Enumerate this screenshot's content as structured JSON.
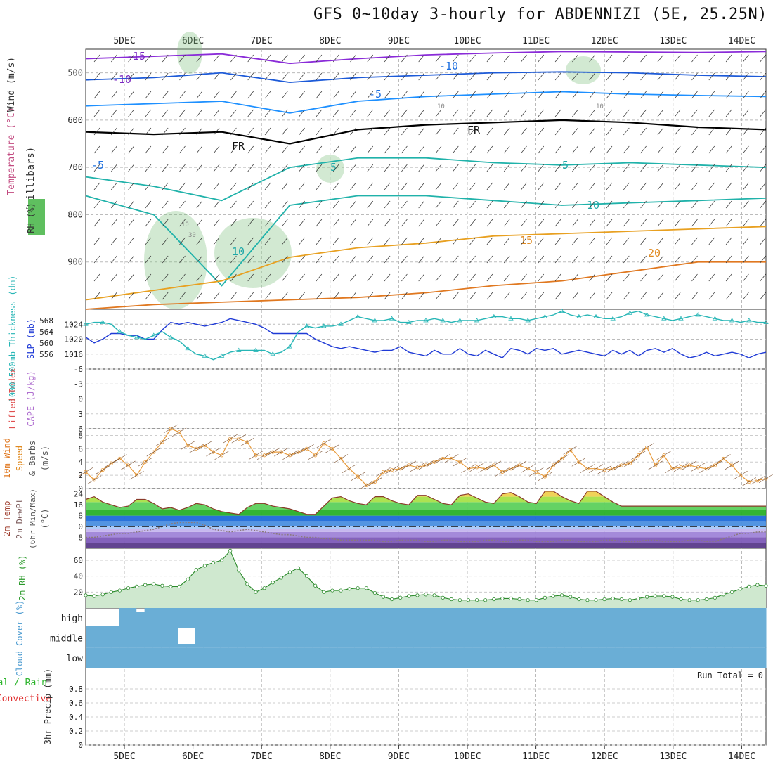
{
  "title": "GFS 0~10day 3-hourly for ABDENNIZI (5E, 25.25N)",
  "x_ticks": [
    "5DEC",
    "6DEC",
    "7DEC",
    "8DEC",
    "9DEC",
    "10DEC",
    "11DEC",
    "12DEC",
    "13DEC",
    "14DEC"
  ],
  "colors": {
    "temperature_contours": "#1c5ad8",
    "freezing_line": "#000000",
    "rh_shade": "#7fbf7f",
    "slp_line": "#1f3ad6",
    "thickness_line": "#27b6b6",
    "lifted_index_line": "#e05050",
    "wind_speed_line": "#e89a3a",
    "rh_line": "#2b8a2b",
    "cloud_fill": "#6aaed6",
    "precip_total": "#2db52d",
    "precip_convective": "#e03030"
  },
  "chart_data": [
    {
      "panel": "upper-air",
      "type": "line",
      "ylabel": "(millibars)",
      "ylabel_parts": [
        "Wind (m/s)",
        "Temperature (°C)",
        "RH (%)"
      ],
      "ylim": [
        1000,
        450
      ],
      "y_ticks": [
        500,
        600,
        700,
        800,
        900
      ],
      "contour_labels": [
        "-15",
        "-10",
        "-10",
        "-5",
        "-5",
        "FR",
        "FR",
        "5",
        "5",
        "10",
        "10",
        "15",
        "20"
      ],
      "rh_labels": [
        "10",
        "30",
        "10",
        "10"
      ],
      "series": [
        {
          "name": "-15",
          "y": [
            470,
            465,
            460,
            480,
            470,
            462,
            458,
            455,
            456,
            457,
            455
          ]
        },
        {
          "name": "-10",
          "y": [
            515,
            510,
            500,
            520,
            510,
            505,
            500,
            498,
            500,
            505,
            508
          ]
        },
        {
          "name": "-5",
          "y": [
            570,
            565,
            560,
            585,
            560,
            550,
            545,
            540,
            545,
            548,
            550
          ]
        },
        {
          "name": "FR",
          "y": [
            625,
            630,
            625,
            650,
            620,
            610,
            605,
            600,
            605,
            615,
            620
          ]
        },
        {
          "name": "5",
          "y": [
            720,
            740,
            770,
            700,
            680,
            680,
            690,
            695,
            690,
            695,
            700
          ]
        },
        {
          "name": "10",
          "y": [
            760,
            800,
            950,
            780,
            760,
            760,
            770,
            780,
            775,
            770,
            765
          ]
        },
        {
          "name": "15",
          "y": [
            980,
            960,
            940,
            890,
            870,
            860,
            845,
            840,
            835,
            830,
            825
          ]
        },
        {
          "name": "20",
          "y": [
            1000,
            990,
            985,
            980,
            975,
            965,
            950,
            940,
            920,
            900,
            900
          ]
        }
      ]
    },
    {
      "panel": "slp-thickness",
      "type": "line",
      "ylabel": "SLP (mb)",
      "ylabel2": "1000-500mb Thickness (dm)",
      "y_ticks_left": [
        "568",
        "564",
        "560",
        "556"
      ],
      "y_ticks_right": [
        "1024",
        "1020",
        "1016"
      ],
      "ylim": [
        1012,
        1028
      ],
      "series": [
        {
          "name": "SLP",
          "values": [
            1020.5,
            1019.0,
            1020.0,
            1021.5,
            1021.5,
            1021.0,
            1021.0,
            1020.0,
            1020.0,
            1022.5,
            1024.5,
            1024.0,
            1024.5,
            1024.0,
            1023.5,
            1024.0,
            1024.5,
            1025.5,
            1025.0,
            1024.5,
            1024.0,
            1023.0,
            1021.5,
            1021.5,
            1021.5,
            1021.5,
            1021.5,
            1020.0,
            1019.0,
            1018.0,
            1017.5,
            1018.0,
            1017.5,
            1017.0,
            1016.5,
            1017.0,
            1017.0,
            1018.0,
            1016.5,
            1016.0,
            1015.5,
            1017.0,
            1016.0,
            1016.0,
            1017.5,
            1016.0,
            1015.5,
            1017.0,
            1016.0,
            1015.0,
            1017.5,
            1017.0,
            1016.0,
            1017.5,
            1017.0,
            1017.5,
            1016.0,
            1016.5,
            1017.0,
            1016.5,
            1016.0,
            1015.5,
            1017.0,
            1016.0,
            1017.0,
            1015.5,
            1017.0,
            1017.5,
            1016.5,
            1017.5,
            1016.0,
            1015.0,
            1015.5,
            1016.5,
            1015.5,
            1016.0,
            1016.5,
            1016.0,
            1015.0,
            1016.0,
            1016.5
          ]
        },
        {
          "name": "Thickness",
          "values": [
            566.0,
            566.5,
            566.5,
            566.0,
            564.0,
            563.0,
            562.5,
            562.0,
            563.0,
            564.0,
            562.5,
            561.5,
            559.5,
            558.0,
            557.5,
            556.5,
            557.5,
            558.5,
            559.0,
            559.0,
            559.0,
            559.0,
            558.0,
            558.5,
            560.0,
            564.0,
            565.5,
            565.0,
            565.5,
            565.5,
            566.0,
            567.0,
            568.0,
            567.5,
            567.0,
            567.0,
            567.5,
            566.5,
            566.5,
            567.0,
            567.0,
            567.5,
            567.0,
            566.5,
            567.0,
            567.0,
            567.0,
            567.5,
            568.0,
            568.0,
            567.5,
            567.5,
            567.0,
            567.5,
            568.0,
            568.5,
            569.5,
            568.5,
            568.0,
            568.5,
            568.0,
            567.5,
            567.5,
            568.0,
            569.0,
            569.5,
            568.5,
            568.0,
            567.5,
            567.0,
            567.5,
            568.0,
            568.5,
            568.0,
            567.5,
            567.0,
            567.0,
            566.5,
            567.0,
            566.5,
            566.5
          ]
        }
      ]
    },
    {
      "panel": "stability",
      "type": "line",
      "ylabel": "Lifted Index",
      "ylabel2": "CAPE (J/kg)",
      "y_ticks": [
        "-6",
        "-3",
        "0",
        "3",
        "6"
      ],
      "ylim": [
        -6,
        6
      ],
      "series": [
        {
          "name": "Lifted Index",
          "values": []
        }
      ]
    },
    {
      "panel": "10m-wind",
      "type": "line",
      "ylabel": "10m Wind Speed & Barbs (m/s)",
      "ylabel_parts": [
        "10m Wind",
        "Speed",
        "& Barbs",
        "(m/s)"
      ],
      "y_ticks": [
        "0",
        "2",
        "4",
        "6",
        "8"
      ],
      "ylim": [
        0,
        9
      ],
      "values": [
        2.5,
        1.3,
        2.8,
        3.8,
        4.5,
        3.5,
        2.0,
        4.0,
        5.5,
        7.0,
        9.0,
        8.5,
        6.5,
        6.0,
        6.5,
        5.5,
        5.0,
        7.5,
        7.5,
        7.0,
        5.0,
        5.0,
        5.5,
        5.5,
        5.0,
        5.5,
        6.0,
        5.0,
        6.8,
        6.0,
        4.5,
        3.0,
        1.8,
        0.5,
        1.0,
        2.5,
        2.8,
        3.0,
        3.5,
        3.2,
        3.5,
        4.0,
        4.5,
        4.5,
        4.0,
        3.0,
        3.2,
        3.0,
        3.5,
        2.5,
        3.0,
        3.5,
        3.0,
        2.5,
        1.8,
        3.5,
        4.5,
        5.8,
        4.0,
        3.0,
        3.0,
        2.8,
        3.0,
        3.5,
        3.8,
        5.0,
        6.2,
        3.5,
        5.0,
        3.0,
        3.2,
        3.5,
        3.2,
        3.0,
        3.5,
        4.5,
        3.5,
        2.0,
        1.0,
        1.2,
        1.5
      ]
    },
    {
      "panel": "2m-temp",
      "type": "area",
      "ylabel": "2m Temp 2m DewPt (6hr Min/Max) (°C)",
      "ylabel_parts": [
        "2m Temp",
        "2m DewPt",
        "(6hr Min/Max)",
        "(°C)"
      ],
      "y_ticks": [
        "-8",
        "0",
        "8",
        "16",
        "24"
      ],
      "ylim": [
        -16,
        28
      ],
      "series": [
        {
          "name": "2m Temp",
          "values": [
            20,
            22,
            18,
            16,
            14,
            15,
            20,
            20,
            17,
            13,
            14,
            12,
            14,
            17,
            16,
            13,
            11,
            10,
            9,
            14,
            17,
            17,
            15,
            14,
            13,
            11,
            9,
            9,
            15,
            21,
            22,
            19,
            17,
            16,
            22,
            22,
            19,
            17,
            16,
            23,
            23,
            20,
            17,
            16,
            23,
            24,
            21,
            18,
            17,
            24,
            25,
            22,
            18,
            17,
            26,
            26,
            22,
            19,
            17,
            26,
            26,
            22,
            18,
            15,
            15,
            15,
            15,
            15,
            15,
            15,
            15,
            15,
            15,
            15,
            15,
            15,
            15,
            15,
            15,
            15,
            15
          ]
        },
        {
          "name": "2m DewPt",
          "values": [
            -8,
            -8,
            -7,
            -6,
            -5,
            -5,
            -4,
            -3,
            -2,
            0,
            2,
            3,
            3,
            3,
            1,
            -2,
            -3,
            -4,
            -3,
            -2,
            -3,
            -4,
            -5,
            -6,
            -6,
            -7,
            -8,
            -8,
            -9,
            -9,
            -10,
            -10,
            -10,
            -10,
            -10,
            -11,
            -11,
            -10,
            -10,
            -10,
            -11,
            -11,
            -10,
            -10,
            -11,
            -11,
            -11,
            -10,
            -10,
            -11,
            -11,
            -10,
            -10,
            -11,
            -11,
            -11,
            -10,
            -10,
            -11,
            -11,
            -11,
            -10,
            -10,
            -11,
            -11,
            -11,
            -10,
            -10,
            -11,
            -11,
            -11,
            -10,
            -10,
            -11,
            -11,
            -9,
            -7,
            -5,
            -5,
            -4,
            -4
          ]
        }
      ]
    },
    {
      "panel": "2m-rh",
      "type": "area",
      "ylabel": "2m RH (%)",
      "y_ticks": [
        "20",
        "40",
        "60"
      ],
      "ylim": [
        0,
        75
      ],
      "values": [
        16,
        15,
        17,
        20,
        22,
        25,
        27,
        29,
        30,
        28,
        27,
        27,
        36,
        48,
        53,
        57,
        60,
        72,
        47,
        30,
        20,
        25,
        32,
        38,
        45,
        50,
        40,
        28,
        20,
        22,
        22,
        24,
        25,
        25,
        19,
        14,
        11,
        13,
        15,
        16,
        17,
        16,
        13,
        11,
        10,
        10,
        10,
        10,
        11,
        12,
        12,
        11,
        10,
        10,
        13,
        15,
        16,
        14,
        11,
        10,
        10,
        11,
        12,
        11,
        10,
        12,
        14,
        15,
        15,
        14,
        11,
        10,
        10,
        11,
        13,
        17,
        20,
        24,
        27,
        29,
        28
      ]
    },
    {
      "panel": "cloud-cover",
      "type": "heatmap",
      "ylabel": "Cloud Cover (%)",
      "levels": [
        "high",
        "middle",
        "low"
      ],
      "series": [
        {
          "name": "high",
          "values": [
            10,
            10,
            10,
            10,
            100,
            100,
            80,
            100,
            100,
            100,
            100,
            100,
            100,
            100,
            100,
            100,
            100,
            100,
            100,
            100,
            100,
            100,
            100,
            100,
            100,
            100,
            100,
            100,
            100,
            100,
            100,
            100,
            100,
            100,
            100,
            100,
            100,
            100,
            100,
            100,
            100,
            100,
            100,
            100,
            100,
            100,
            100,
            100,
            100,
            100,
            100,
            100,
            100,
            100,
            100,
            100,
            100,
            100,
            100,
            100,
            100,
            100,
            100,
            100,
            100,
            100,
            100,
            100,
            100,
            100,
            100,
            100,
            100,
            100,
            100,
            100,
            100,
            100,
            100,
            100,
            100
          ]
        },
        {
          "name": "middle",
          "values": [
            100,
            100,
            100,
            100,
            100,
            100,
            100,
            100,
            100,
            100,
            100,
            20,
            20,
            100,
            100,
            100,
            100,
            100,
            100,
            100,
            100,
            100,
            100,
            100,
            100,
            100,
            100,
            100,
            100,
            100,
            100,
            100,
            100,
            100,
            100,
            100,
            100,
            100,
            100,
            100,
            100,
            100,
            100,
            100,
            100,
            100,
            100,
            100,
            100,
            100,
            100,
            100,
            100,
            100,
            100,
            100,
            100,
            100,
            100,
            100,
            100,
            100,
            100,
            100,
            100,
            100,
            100,
            100,
            100,
            100,
            100,
            100,
            100,
            100,
            100,
            100,
            100,
            100,
            100,
            100,
            100
          ]
        },
        {
          "name": "low",
          "values": [
            100,
            100,
            100,
            100,
            100,
            100,
            100,
            100,
            100,
            100,
            100,
            100,
            100,
            100,
            100,
            100,
            100,
            100,
            100,
            100,
            100,
            100,
            100,
            100,
            100,
            100,
            100,
            100,
            100,
            100,
            100,
            100,
            100,
            100,
            100,
            100,
            100,
            100,
            100,
            100,
            100,
            100,
            100,
            100,
            100,
            100,
            100,
            100,
            100,
            100,
            100,
            100,
            100,
            100,
            100,
            100,
            100,
            100,
            100,
            100,
            100,
            100,
            100,
            100,
            100,
            100,
            100,
            100,
            100,
            100,
            100,
            100,
            100,
            100,
            100,
            100,
            100,
            100,
            100,
            100,
            100
          ]
        }
      ]
    },
    {
      "panel": "precip",
      "type": "bar",
      "ylabel": "3hr Precip (mm)",
      "ylabel_parts": [
        "Total / Rain",
        "Convective",
        "3hr Precip (mm)"
      ],
      "annotation": "Run Total = 0",
      "y_ticks": [
        "0",
        "0.2",
        "0.4",
        "0.6",
        "0.8"
      ],
      "ylim": [
        0,
        1
      ],
      "values": []
    }
  ]
}
